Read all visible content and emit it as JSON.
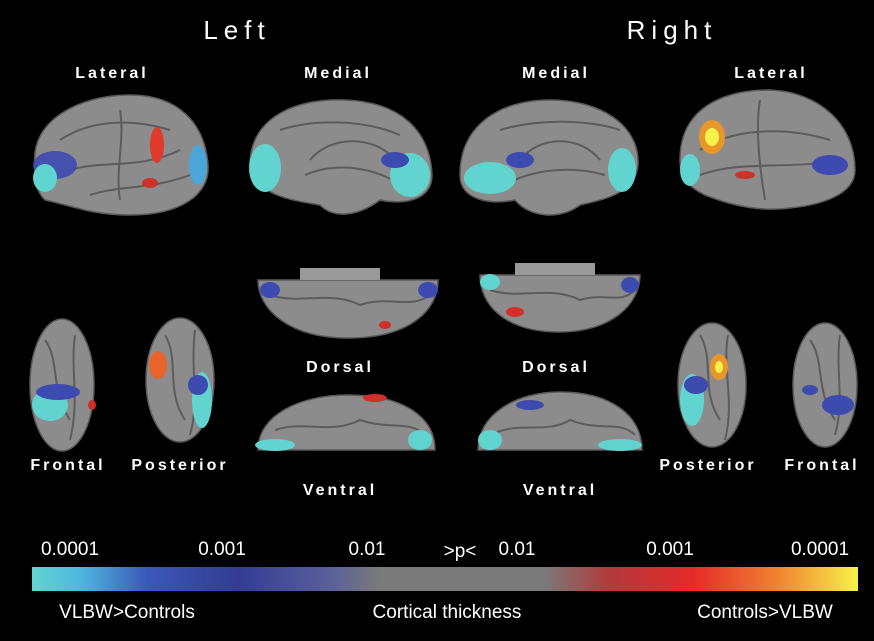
{
  "headers": {
    "left": "Left",
    "right": "Right"
  },
  "views": [
    "Lateral",
    "Medial",
    "Medial",
    "Lateral",
    "Dorsal",
    "Dorsal",
    "Frontal",
    "Posterior",
    "Posterior",
    "Frontal",
    "Ventral",
    "Ventral"
  ],
  "colorbar": {
    "ticks": [
      "0.0001",
      "0.001",
      "0.01",
      ">p<",
      "0.01",
      "0.001",
      "0.0001"
    ],
    "left_label": "VLBW>Controls",
    "center_label": "Cortical thickness",
    "right_label": "Controls>VLBW"
  }
}
